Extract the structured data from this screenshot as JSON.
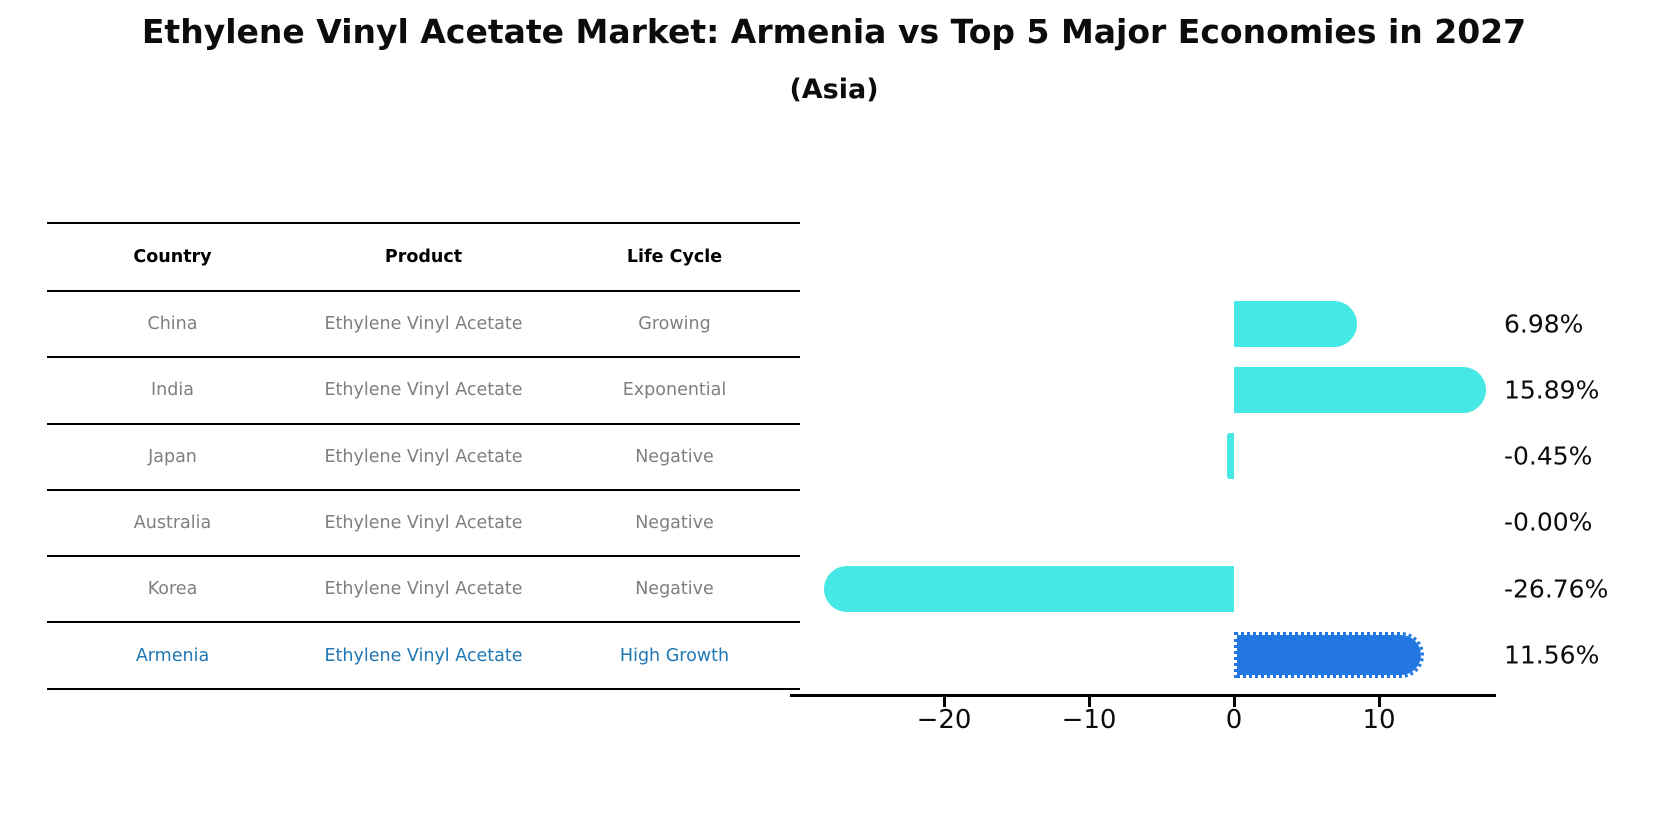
{
  "title": "Ethylene Vinyl Acetate Market: Armenia vs Top 5 Major Economies in 2027",
  "subtitle": "(Asia)",
  "table": {
    "headers": [
      "Country",
      "Product",
      "Life Cycle"
    ],
    "rows": [
      {
        "country": "China",
        "product": "Ethylene Vinyl Acetate",
        "life_cycle": "Growing"
      },
      {
        "country": "India",
        "product": "Ethylene Vinyl Acetate",
        "life_cycle": "Exponential"
      },
      {
        "country": "Japan",
        "product": "Ethylene Vinyl Acetate",
        "life_cycle": "Negative"
      },
      {
        "country": "Australia",
        "product": "Ethylene Vinyl Acetate",
        "life_cycle": "Negative"
      },
      {
        "country": "Korea",
        "product": "Ethylene Vinyl Acetate",
        "life_cycle": "Negative"
      },
      {
        "country": "Armenia",
        "product": "Ethylene Vinyl Acetate",
        "life_cycle": "High Growth"
      }
    ],
    "highlight_row": "Armenia"
  },
  "chart_data": {
    "type": "bar",
    "orientation": "horizontal",
    "categories": [
      "China",
      "India",
      "Japan",
      "Australia",
      "Korea",
      "Armenia"
    ],
    "values": [
      6.98,
      15.89,
      -0.45,
      -0.0,
      -26.76,
      11.56
    ],
    "value_labels": [
      "6.98%",
      "15.89%",
      "-0.45%",
      "-0.00%",
      "-26.76%",
      "11.56%"
    ],
    "xticks": [
      -20,
      -10,
      0,
      10
    ],
    "xtick_labels": [
      "−20",
      "−10",
      "0",
      "10"
    ],
    "xlim": [
      -30.5,
      18
    ],
    "grid": false,
    "legend": false,
    "highlight_index": 5,
    "bar_color": "#45e8e4",
    "highlight_bar_color": "#2377e2",
    "highlight_border_style": "dotted"
  },
  "colors": {
    "bar_default": "#45e8e4",
    "bar_highlight": "#2377e2",
    "highlight_text": "#1f77b4",
    "muted_text": "#7f7f7f",
    "axis": "#000000"
  }
}
